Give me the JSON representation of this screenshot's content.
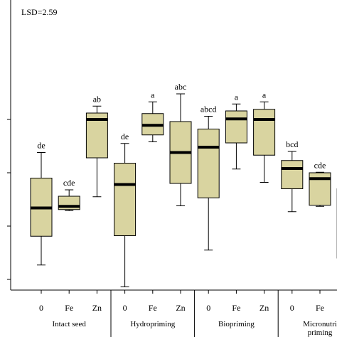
{
  "chart_data": {
    "type": "box",
    "annotation": "LSD=2.59",
    "ylim": [
      0,
      50
    ],
    "yticks": [
      10,
      20,
      30,
      40
    ],
    "group_labels": [
      "Intact seed",
      "Hydropriming",
      "Biopriming",
      "Micronutrient priming"
    ],
    "group_labels_display": [
      [
        "Intact seed"
      ],
      [
        "Hydropriming"
      ],
      [
        "Biopriming"
      ],
      [
        "Micronutri",
        "priming"
      ]
    ],
    "boxes": [
      {
        "group": "Intact seed",
        "tick": "0",
        "whisker_low": 12.7,
        "q1": 18.1,
        "median": 23.4,
        "q3": 29.0,
        "whisker_high": 33.8,
        "letters": "de"
      },
      {
        "group": "Intact seed",
        "tick": "Fe",
        "whisker_low": 22.9,
        "q1": 23.1,
        "median": 23.7,
        "q3": 25.6,
        "whisker_high": 26.8,
        "letters": "cde"
      },
      {
        "group": "Intact seed",
        "tick": "Zn",
        "whisker_low": 25.5,
        "q1": 32.8,
        "median": 40.0,
        "q3": 41.2,
        "whisker_high": 42.5,
        "letters": "ab"
      },
      {
        "group": "Hydropriming",
        "tick": "0",
        "whisker_low": 8.6,
        "q1": 18.2,
        "median": 27.8,
        "q3": 31.8,
        "whisker_high": 35.5,
        "letters": "de"
      },
      {
        "group": "Hydropriming",
        "tick": "Fe",
        "whisker_low": 35.8,
        "q1": 37.1,
        "median": 38.9,
        "q3": 41.1,
        "whisker_high": 43.3,
        "letters": "a"
      },
      {
        "group": "Hydropriming",
        "tick": "Zn",
        "whisker_low": 23.8,
        "q1": 28.0,
        "median": 33.8,
        "q3": 39.6,
        "whisker_high": 44.8,
        "letters": "abc"
      },
      {
        "group": "Biopriming",
        "tick": "0",
        "whisker_low": 15.5,
        "q1": 25.3,
        "median": 34.8,
        "q3": 38.2,
        "whisker_high": 40.6,
        "letters": "abcd"
      },
      {
        "group": "Biopriming",
        "tick": "Fe",
        "whisker_low": 30.7,
        "q1": 35.6,
        "median": 40.1,
        "q3": 41.6,
        "whisker_high": 42.9,
        "letters": "a"
      },
      {
        "group": "Biopriming",
        "tick": "Zn",
        "whisker_low": 28.2,
        "q1": 33.3,
        "median": 40.0,
        "q3": 41.9,
        "whisker_high": 43.3,
        "letters": "a"
      },
      {
        "group": "Micronutrient priming",
        "tick": "0",
        "whisker_low": 22.7,
        "q1": 27.0,
        "median": 30.8,
        "q3": 32.3,
        "whisker_high": 34.0,
        "letters": "bcd"
      },
      {
        "group": "Micronutrient priming",
        "tick": "Fe",
        "whisker_low": 23.7,
        "q1": 23.9,
        "median": 28.9,
        "q3": 30.0,
        "whisker_high": 30.1,
        "letters": "cde"
      },
      {
        "group": "Micronutrient priming",
        "tick": "Zn",
        "whisker_low": null,
        "q1": 14.0,
        "median": null,
        "q3": 27.0,
        "whisker_high": null,
        "letters": ""
      }
    ],
    "box_color": "#d9d4a0",
    "line_color": "#000000"
  }
}
